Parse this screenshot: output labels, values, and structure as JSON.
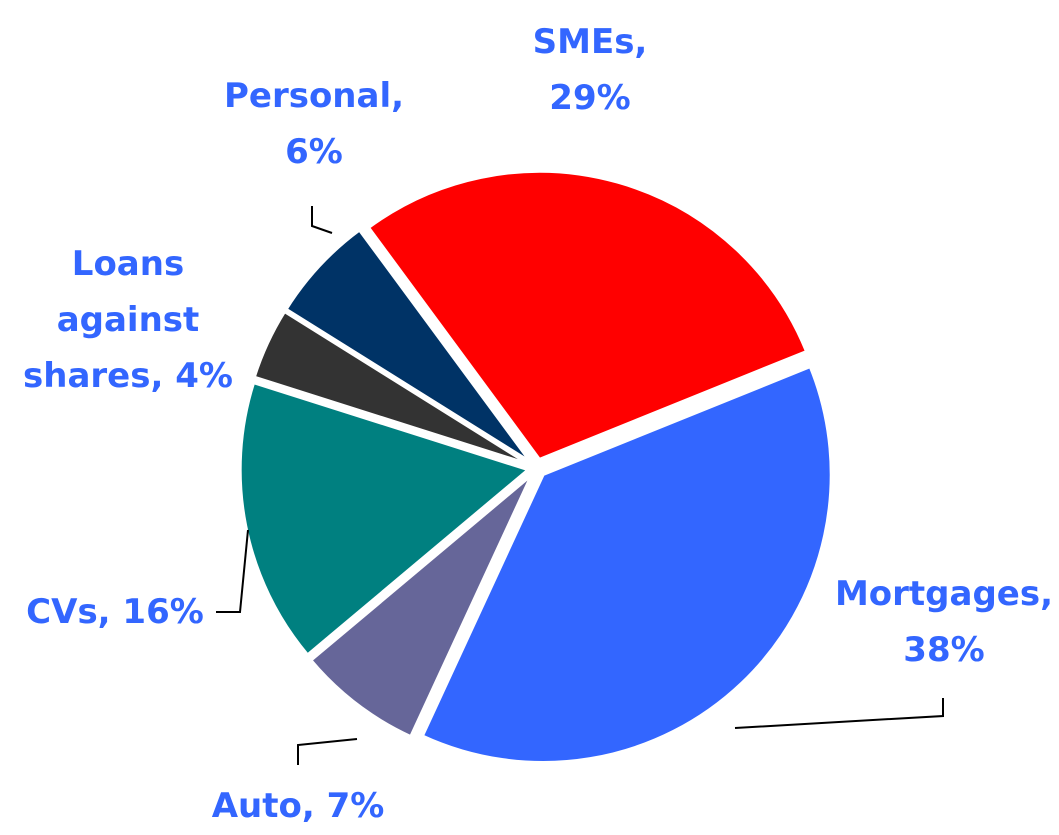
{
  "chart_data": {
    "type": "pie",
    "categories": [
      "Mortgages",
      "Auto",
      "CVs",
      "Loans against shares",
      "Personal",
      "SMEs"
    ],
    "values": [
      38,
      7,
      16,
      4,
      6,
      29
    ],
    "value_labels": [
      "Mortgages, 38%",
      "Auto, 7%",
      "CVs, 16%",
      "Loans against shares, 4%",
      "Personal, 6%",
      "SMEs, 29%"
    ],
    "colors": [
      "#3366ff",
      "#666699",
      "#008080",
      "#333333",
      "#003366",
      "#ff0000"
    ],
    "label_color": "#3366ff"
  }
}
